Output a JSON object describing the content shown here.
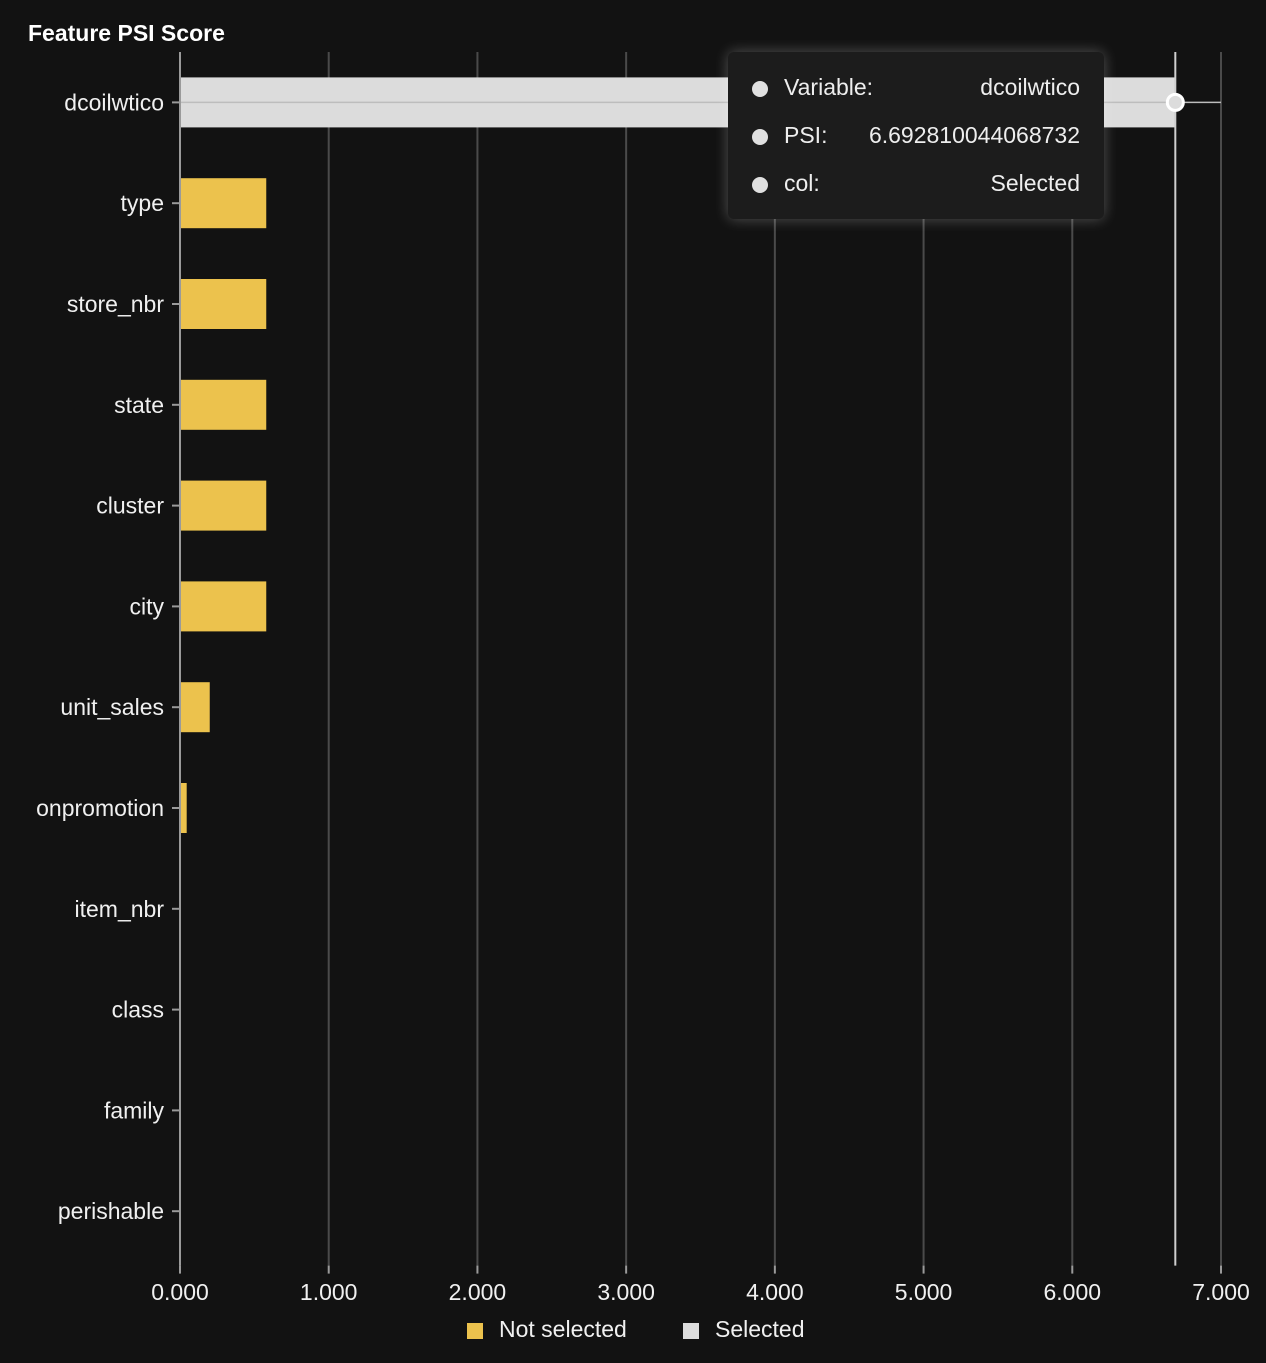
{
  "chart_data": {
    "type": "bar",
    "orientation": "horizontal",
    "title": "Feature PSI Score",
    "xlabel": "",
    "ylabel": "",
    "xlim": [
      0,
      7
    ],
    "x_ticks": [
      "0.000",
      "1.000",
      "2.000",
      "3.000",
      "4.000",
      "5.000",
      "6.000",
      "7.000"
    ],
    "categories": [
      "dcoilwtico",
      "type",
      "store_nbr",
      "state",
      "cluster",
      "city",
      "unit_sales",
      "onpromotion",
      "item_nbr",
      "class",
      "family",
      "perishable"
    ],
    "values": [
      6.692810044068732,
      0.58,
      0.58,
      0.58,
      0.58,
      0.58,
      0.2,
      0.045,
      0.0,
      0.0,
      0.0,
      0.0
    ],
    "groups": [
      "Selected",
      "Not selected",
      "Not selected",
      "Not selected",
      "Not selected",
      "Not selected",
      "Not selected",
      "Not selected",
      "Not selected",
      "Not selected",
      "Not selected",
      "Not selected"
    ],
    "series_colors": {
      "Not selected": "#ecc24d",
      "Selected": "#dcdcdc"
    },
    "grid": true,
    "legend_position": "bottom-center",
    "legend": [
      "Not selected",
      "Selected"
    ],
    "highlighted": "dcoilwtico"
  },
  "tooltip": {
    "rows": [
      {
        "label": "Variable:",
        "value": "dcoilwtico"
      },
      {
        "label": "PSI:",
        "value": "6.692810044068732"
      },
      {
        "label": "col:",
        "value": "Selected"
      }
    ]
  }
}
